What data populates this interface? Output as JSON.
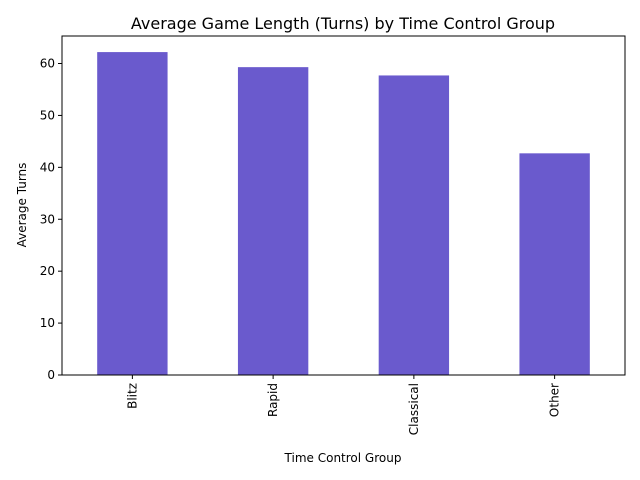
{
  "chart_data": {
    "type": "bar",
    "title": "Average Game Length (Turns) by Time Control Group",
    "xlabel": "Time Control Group",
    "ylabel": "Average Turns",
    "categories": [
      "Blitz",
      "Rapid",
      "Classical",
      "Other"
    ],
    "values": [
      62.2,
      59.3,
      57.7,
      42.7
    ],
    "ylim": [
      0,
      65.3
    ],
    "yticks": [
      0,
      10,
      20,
      30,
      40,
      50,
      60
    ],
    "bar_color": "#6a5acd",
    "grid": false,
    "legend": "none"
  }
}
